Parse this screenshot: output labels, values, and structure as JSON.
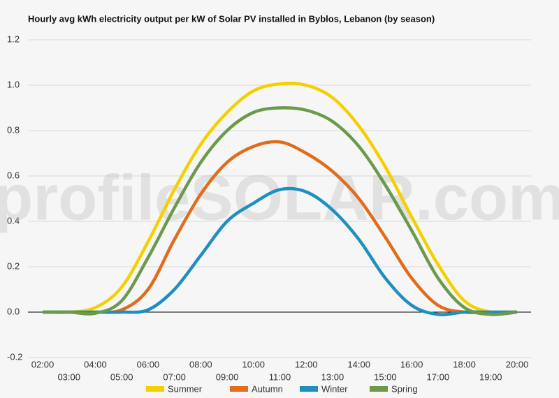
{
  "chart_data": {
    "type": "line",
    "title": "Hourly avg kWh electricity output per kW of Solar PV installed in Byblos, Lebanon (by season)",
    "watermark": "profileSOLAR.com",
    "categories": [
      "02:00",
      "03:00",
      "04:00",
      "05:00",
      "06:00",
      "07:00",
      "08:00",
      "09:00",
      "10:00",
      "11:00",
      "12:00",
      "13:00",
      "14:00",
      "15:00",
      "16:00",
      "17:00",
      "18:00",
      "19:00",
      "20:00"
    ],
    "series": [
      {
        "name": "Summer",
        "color": "#f5d000",
        "values": [
          0,
          0,
          0.02,
          0.11,
          0.31,
          0.54,
          0.74,
          0.88,
          0.975,
          1.006,
          1.0,
          0.945,
          0.82,
          0.64,
          0.42,
          0.21,
          0.05,
          0,
          0
        ]
      },
      {
        "name": "Autumn",
        "color": "#e06c1c",
        "values": [
          0,
          0,
          0,
          0.01,
          0.1,
          0.32,
          0.52,
          0.66,
          0.73,
          0.75,
          0.7,
          0.62,
          0.5,
          0.33,
          0.15,
          0.03,
          0,
          0,
          0
        ]
      },
      {
        "name": "Winter",
        "color": "#1f8fbf",
        "values": [
          0,
          0,
          0,
          0,
          0.01,
          0.1,
          0.25,
          0.4,
          0.48,
          0.54,
          0.53,
          0.45,
          0.32,
          0.15,
          0.03,
          -0.01,
          0,
          0,
          0
        ]
      },
      {
        "name": "Spring",
        "color": "#6a9a4a",
        "values": [
          0,
          0,
          -0.005,
          0.05,
          0.24,
          0.46,
          0.66,
          0.8,
          0.88,
          0.9,
          0.89,
          0.84,
          0.73,
          0.56,
          0.36,
          0.15,
          0.02,
          -0.01,
          0
        ]
      }
    ],
    "ylim": [
      -0.2,
      1.2
    ],
    "yticks": [
      {
        "value": -0.2,
        "label": "-0.2"
      },
      {
        "value": 0,
        "label": "0.0"
      },
      0.2,
      0.4,
      0.6,
      0.8,
      {
        "value": 1,
        "label": "1.0"
      },
      1.2
    ],
    "grid": true
  }
}
